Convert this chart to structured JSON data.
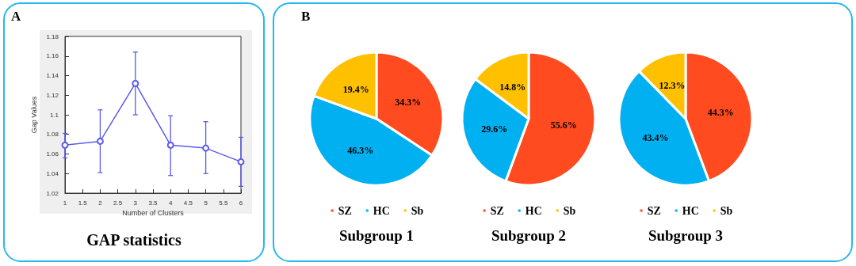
{
  "chart_data": [
    {
      "type": "line",
      "title": "GAP statistics",
      "xlabel": "Number of Clusters",
      "ylabel": "Gap Values",
      "annotations": [
        "A"
      ],
      "x": [
        1,
        2,
        3,
        4,
        5,
        6
      ],
      "series": [
        {
          "color": "#5a5af0",
          "values": [
            1.069,
            1.073,
            1.132,
            1.069,
            1.066,
            1.052
          ],
          "errors": [
            [
              1.056,
              1.081
            ],
            [
              1.041,
              1.105
            ],
            [
              1.1,
              1.164
            ],
            [
              1.038,
              1.099
            ],
            [
              1.04,
              1.093
            ],
            [
              1.027,
              1.077
            ]
          ]
        }
      ],
      "xlim": [
        1,
        6
      ],
      "xticks": [
        1,
        1.5,
        2,
        2.5,
        3,
        3.5,
        4,
        4.5,
        5,
        5.5,
        6
      ],
      "ylim": [
        1.02,
        1.18
      ],
      "yticks": [
        1.02,
        1.04,
        1.06,
        1.08,
        1.1,
        1.12,
        1.14,
        1.16,
        1.18
      ],
      "marker": "circle",
      "line_style": "solid",
      "legend": false
    },
    {
      "type": "pie",
      "title": "Subgroup 1",
      "annotations": [
        "B"
      ],
      "categories": [
        "SZ",
        "HC",
        "Sb"
      ],
      "values": [
        34.3,
        46.3,
        19.4
      ],
      "value_labels": [
        "34.3%",
        "46.3%",
        "19.4%"
      ],
      "colors": [
        "#ff4b1f",
        "#00b0f0",
        "#ffc000"
      ],
      "legend": "bottom"
    },
    {
      "type": "pie",
      "title": "Subgroup 2",
      "categories": [
        "SZ",
        "HC",
        "Sb"
      ],
      "values": [
        55.6,
        29.6,
        14.8
      ],
      "value_labels": [
        "55.6%",
        "29.6%",
        "14.8%"
      ],
      "colors": [
        "#ff4b1f",
        "#00b0f0",
        "#ffc000"
      ],
      "legend": "bottom"
    },
    {
      "type": "pie",
      "title": "Subgroup 3",
      "categories": [
        "SZ",
        "HC",
        "Sb"
      ],
      "values": [
        44.3,
        43.4,
        12.3
      ],
      "value_labels": [
        "44.3%",
        "43.4%",
        "12.3%"
      ],
      "colors": [
        "#ff4b1f",
        "#00b0f0",
        "#ffc000"
      ],
      "legend": "bottom"
    }
  ]
}
